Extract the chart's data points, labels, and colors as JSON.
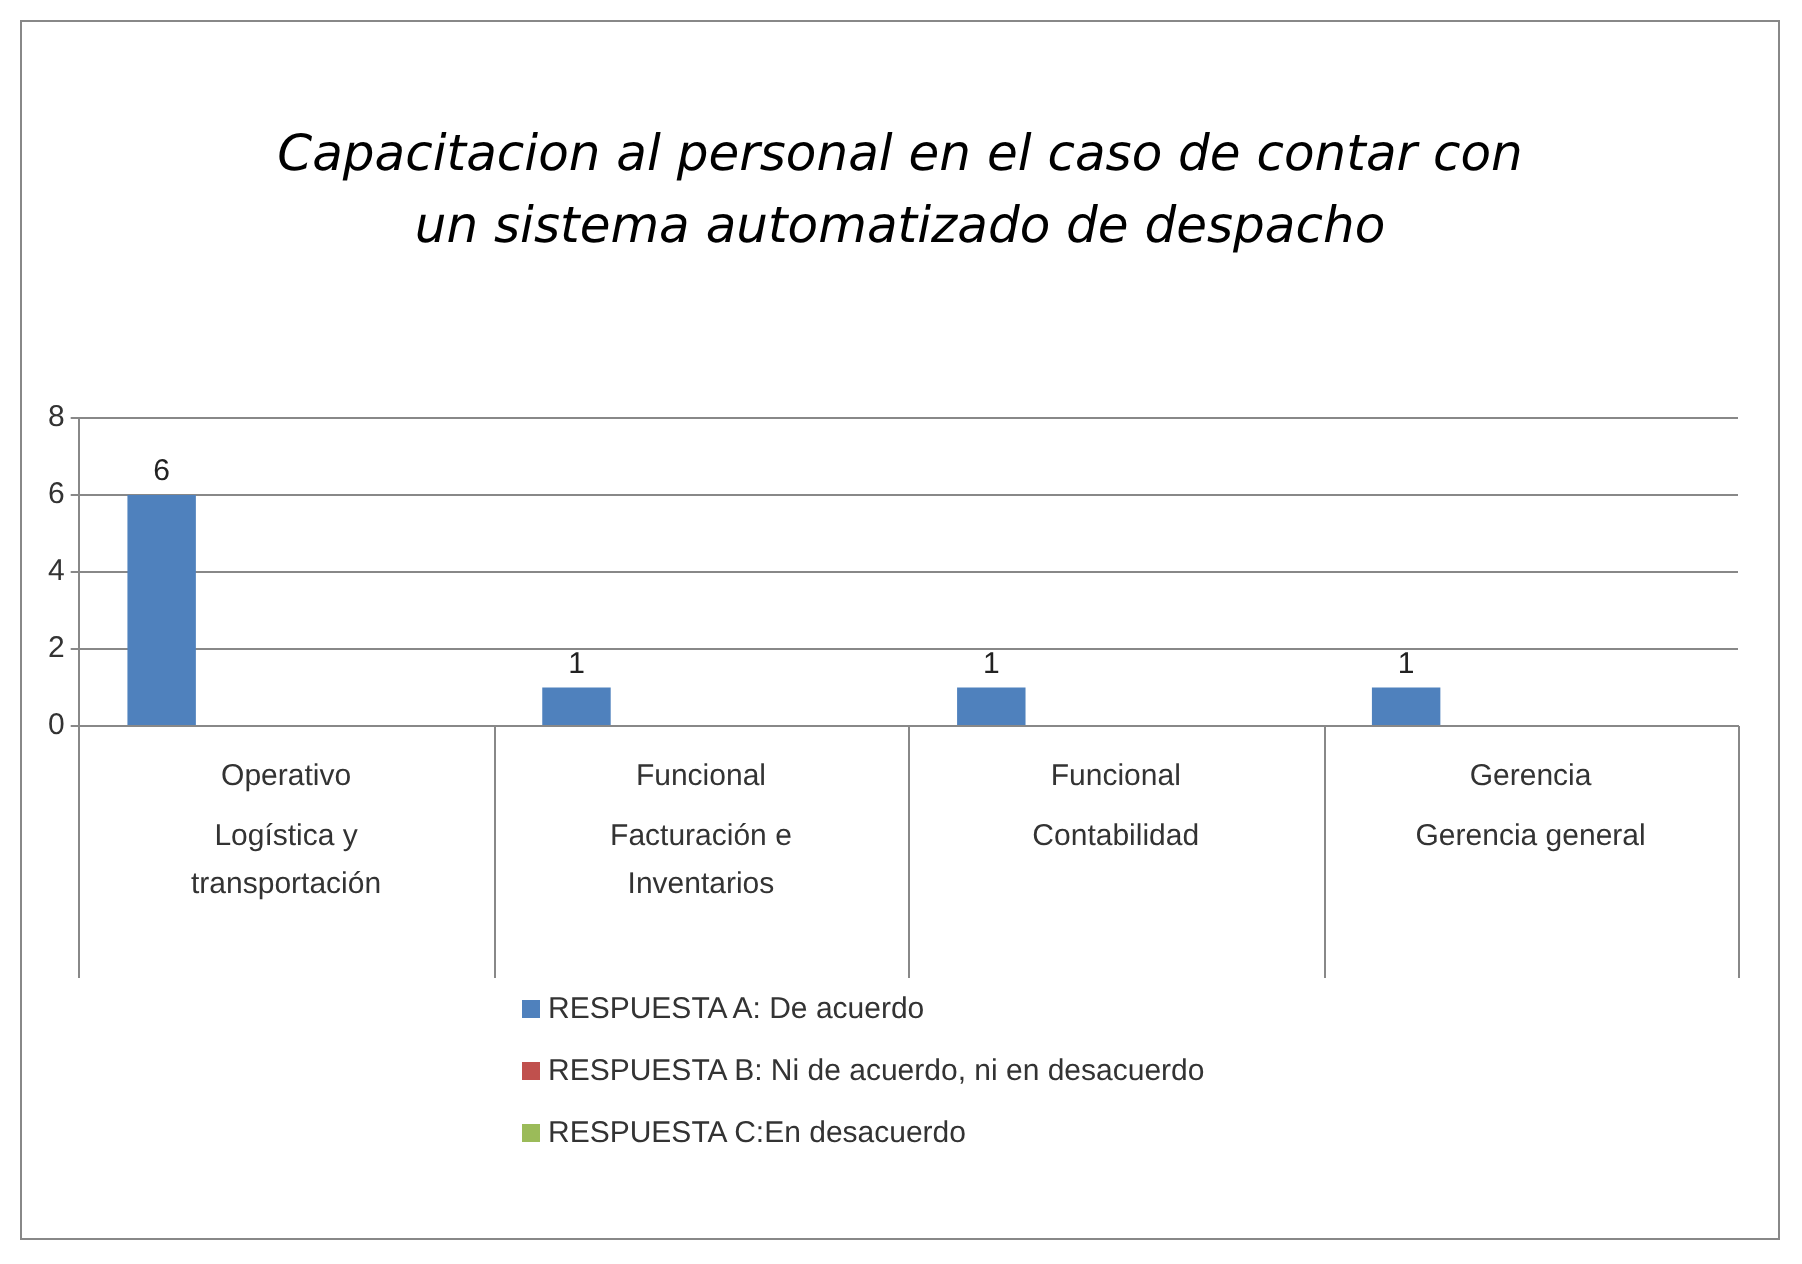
{
  "chart_data": {
    "type": "bar",
    "title": "Capacitacion al personal en el caso de contar con un sistema automatizado de despacho",
    "categories": [
      "Operativo\nLogística y\ntransportación",
      "Funcional\nFacturación e\nInventarios",
      "Funcional\nContabilidad",
      "Gerencia\nGerencia general"
    ],
    "series": [
      {
        "name": "RESPUESTA A: De acuerdo",
        "color": "#4f81bd",
        "values": [
          6,
          1,
          1,
          1
        ],
        "value_labels": [
          "6",
          "1",
          "1",
          "1"
        ]
      },
      {
        "name": "RESPUESTA B: Ni de acuerdo, ni en desacuerdo",
        "color": "#c0504d",
        "values": [
          0,
          0,
          0,
          0
        ]
      },
      {
        "name": "RESPUESTA C:En desacuerdo",
        "color": "#9bbb59",
        "values": [
          0,
          0,
          0,
          0
        ]
      }
    ],
    "ylim": [
      0,
      8
    ],
    "yticks": [
      0,
      2,
      4,
      6,
      8
    ],
    "grid": "y",
    "legend": "bottom"
  }
}
